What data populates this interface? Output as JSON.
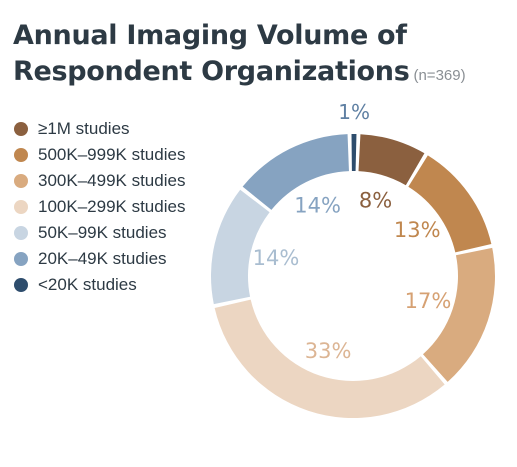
{
  "title": {
    "line1": "Annual Imaging Volume of",
    "line2": "Respondent Organizations",
    "subtitle": "(n=369)"
  },
  "chart_data": {
    "type": "pie",
    "variant": "donut",
    "title": "Annual Imaging Volume of Respondent Organizations",
    "subtitle": "(n=369)",
    "legend_position": "left",
    "unit": "%",
    "slices": [
      {
        "label": "≥1M studies",
        "value": 8,
        "display": "8%",
        "color": "#8b603f",
        "text_color": "#8b603f"
      },
      {
        "label": "500K–999K studies",
        "value": 13,
        "display": "13%",
        "color": "#c0874f",
        "text_color": "#c0874f"
      },
      {
        "label": "300K–499K studies",
        "value": 17,
        "display": "17%",
        "color": "#d9ab7f",
        "text_color": "#d6a173"
      },
      {
        "label": "100K–299K studies",
        "value": 33,
        "display": "33%",
        "color": "#ecd6c2",
        "text_color": "#dcb594"
      },
      {
        "label": "50K–99K studies",
        "value": 14,
        "display": "14%",
        "color": "#c8d5e2",
        "text_color": "#a9bdd0"
      },
      {
        "label": "20K–49K studies",
        "value": 14,
        "display": "14%",
        "color": "#86a3c1",
        "text_color": "#86a3c1"
      },
      {
        "label": "<20K studies",
        "value": 1,
        "display": "1%",
        "color": "#2e4d6d",
        "text_color": "#5f80a3"
      }
    ]
  }
}
